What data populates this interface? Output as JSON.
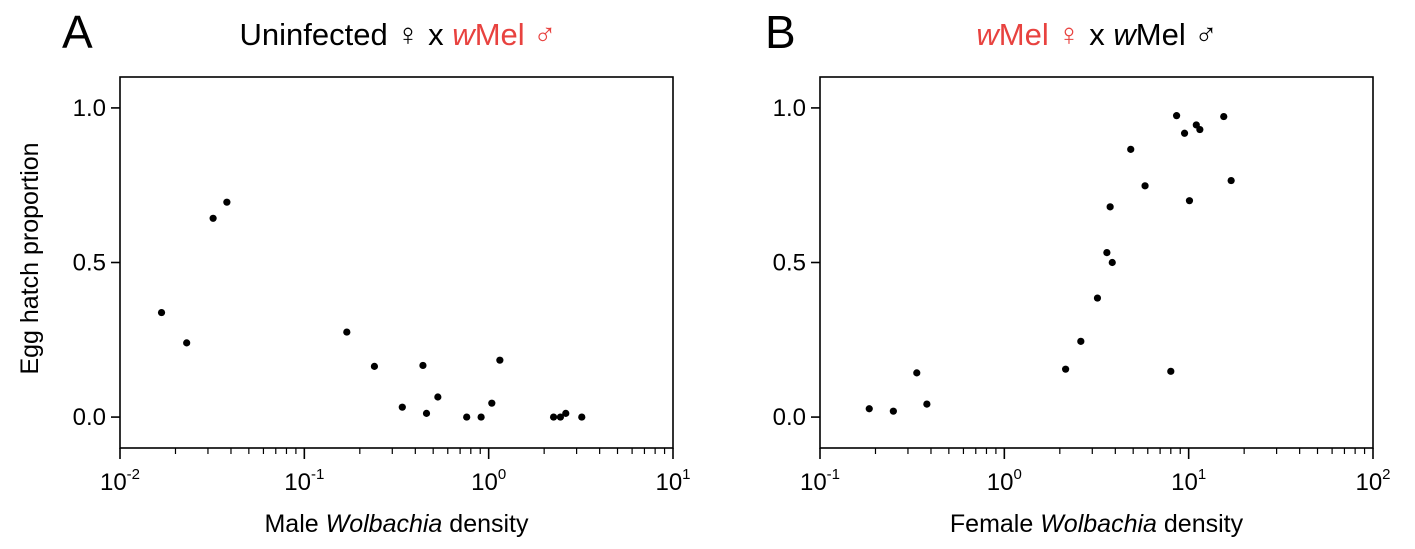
{
  "chart_data": [
    {
      "type": "scatter",
      "panel_label": "A",
      "title": {
        "parts": [
          {
            "text": "Uninfected ",
            "color": "#000000",
            "italic": false
          },
          {
            "text": "♀",
            "color": "#000000",
            "italic": false
          },
          {
            "text": " x ",
            "color": "#000000",
            "italic": false
          },
          {
            "text": "w",
            "color": "#e8423f",
            "italic": true
          },
          {
            "text": "Mel ",
            "color": "#e8423f",
            "italic": false
          },
          {
            "text": "♂",
            "color": "#e8423f",
            "italic": false
          }
        ]
      },
      "xlabel": {
        "parts": [
          {
            "text": "Male ",
            "italic": false
          },
          {
            "text": "Wolbachia",
            "italic": true
          },
          {
            "text": " density",
            "italic": false
          }
        ]
      },
      "ylabel": "Egg hatch proportion",
      "x_scale": "log",
      "xlim": [
        0.01,
        10
      ],
      "ylim": [
        -0.1,
        1.1
      ],
      "x_ticks": [
        {
          "value": 0.01,
          "base": "10",
          "exp": "-2"
        },
        {
          "value": 0.1,
          "base": "10",
          "exp": "-1"
        },
        {
          "value": 1,
          "base": "10",
          "exp": "0"
        },
        {
          "value": 10,
          "base": "10",
          "exp": "1"
        }
      ],
      "y_ticks": [
        {
          "value": 0,
          "label": "0.0"
        },
        {
          "value": 0.5,
          "label": "0.5"
        },
        {
          "value": 1.0,
          "label": "1.0"
        }
      ],
      "grid": false,
      "point_color": "#000000",
      "points": [
        {
          "x": 0.0168,
          "y": 0.338
        },
        {
          "x": 0.023,
          "y": 0.24
        },
        {
          "x": 0.032,
          "y": 0.643
        },
        {
          "x": 0.038,
          "y": 0.695
        },
        {
          "x": 0.17,
          "y": 0.275
        },
        {
          "x": 0.24,
          "y": 0.164
        },
        {
          "x": 0.34,
          "y": 0.032
        },
        {
          "x": 0.44,
          "y": 0.167
        },
        {
          "x": 0.46,
          "y": 0.012
        },
        {
          "x": 0.53,
          "y": 0.065
        },
        {
          "x": 0.76,
          "y": 0.0
        },
        {
          "x": 0.91,
          "y": 0.0
        },
        {
          "x": 1.04,
          "y": 0.045
        },
        {
          "x": 1.15,
          "y": 0.184
        },
        {
          "x": 2.25,
          "y": 0.0
        },
        {
          "x": 2.45,
          "y": 0.0
        },
        {
          "x": 2.62,
          "y": 0.012
        },
        {
          "x": 3.2,
          "y": 0.0
        }
      ]
    },
    {
      "type": "scatter",
      "panel_label": "B",
      "title": {
        "parts": [
          {
            "text": "w",
            "color": "#e8423f",
            "italic": true
          },
          {
            "text": "Mel ",
            "color": "#e8423f",
            "italic": false
          },
          {
            "text": "♀",
            "color": "#e8423f",
            "italic": false
          },
          {
            "text": " x ",
            "color": "#000000",
            "italic": false
          },
          {
            "text": "w",
            "color": "#000000",
            "italic": true
          },
          {
            "text": "Mel ",
            "color": "#000000",
            "italic": false
          },
          {
            "text": "♂",
            "color": "#000000",
            "italic": false
          }
        ]
      },
      "xlabel": {
        "parts": [
          {
            "text": "Female ",
            "italic": false
          },
          {
            "text": "Wolbachia",
            "italic": true
          },
          {
            "text": " density",
            "italic": false
          }
        ]
      },
      "ylabel": "",
      "x_scale": "log",
      "xlim": [
        0.1,
        100
      ],
      "ylim": [
        -0.1,
        1.1
      ],
      "x_ticks": [
        {
          "value": 0.1,
          "base": "10",
          "exp": "-1"
        },
        {
          "value": 1,
          "base": "10",
          "exp": "0"
        },
        {
          "value": 10,
          "base": "10",
          "exp": "1"
        },
        {
          "value": 100,
          "base": "10",
          "exp": "2"
        }
      ],
      "y_ticks": [
        {
          "value": 0,
          "label": "0.0"
        },
        {
          "value": 0.5,
          "label": "0.5"
        },
        {
          "value": 1.0,
          "label": "1.0"
        }
      ],
      "grid": false,
      "point_color": "#000000",
      "points": [
        {
          "x": 0.185,
          "y": 0.027
        },
        {
          "x": 0.25,
          "y": 0.019
        },
        {
          "x": 0.335,
          "y": 0.143
        },
        {
          "x": 0.38,
          "y": 0.042
        },
        {
          "x": 2.15,
          "y": 0.155
        },
        {
          "x": 2.6,
          "y": 0.245
        },
        {
          "x": 3.2,
          "y": 0.385
        },
        {
          "x": 3.6,
          "y": 0.532
        },
        {
          "x": 3.75,
          "y": 0.68
        },
        {
          "x": 3.85,
          "y": 0.5
        },
        {
          "x": 4.85,
          "y": 0.866
        },
        {
          "x": 5.8,
          "y": 0.748
        },
        {
          "x": 8.0,
          "y": 0.148
        },
        {
          "x": 8.6,
          "y": 0.975
        },
        {
          "x": 9.5,
          "y": 0.918
        },
        {
          "x": 10.1,
          "y": 0.7
        },
        {
          "x": 11.0,
          "y": 0.945
        },
        {
          "x": 11.5,
          "y": 0.93
        },
        {
          "x": 15.5,
          "y": 0.972
        },
        {
          "x": 17.0,
          "y": 0.765
        }
      ]
    }
  ]
}
